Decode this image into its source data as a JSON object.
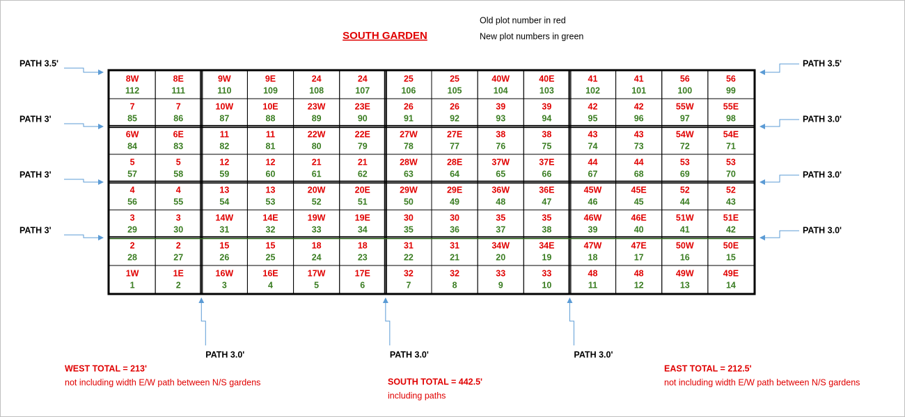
{
  "title": "SOUTH GARDEN",
  "legend": [
    "Old plot number in red",
    "New plot numbers in green"
  ],
  "paths": {
    "left": [
      "PATH 3.5'",
      "PATH 3'",
      "PATH 3'",
      "PATH 3'"
    ],
    "right": [
      "PATH 3.5'",
      "PATH 3.0'",
      "PATH 3.0'",
      "PATH 3.0'"
    ],
    "bottom": [
      "PATH 3.0'",
      "PATH 3.0'",
      "PATH 3.0'"
    ]
  },
  "grid": {
    "rows": [
      [
        {
          "old": "8W",
          "new": 112
        },
        {
          "old": "8E",
          "new": 111
        },
        {
          "old": "9W",
          "new": 110
        },
        {
          "old": "9E",
          "new": 109
        },
        {
          "old": "24",
          "new": 108
        },
        {
          "old": "24",
          "new": 107
        },
        {
          "old": "25",
          "new": 106
        },
        {
          "old": "25",
          "new": 105
        },
        {
          "old": "40W",
          "new": 104
        },
        {
          "old": "40E",
          "new": 103
        },
        {
          "old": "41",
          "new": 102
        },
        {
          "old": "41",
          "new": 101
        },
        {
          "old": "56",
          "new": 100
        },
        {
          "old": "56",
          "new": 99
        }
      ],
      [
        {
          "old": "7",
          "new": 85
        },
        {
          "old": "7",
          "new": 86
        },
        {
          "old": "10W",
          "new": 87
        },
        {
          "old": "10E",
          "new": 88
        },
        {
          "old": "23W",
          "new": 89
        },
        {
          "old": "23E",
          "new": 90
        },
        {
          "old": "26",
          "new": 91
        },
        {
          "old": "26",
          "new": 92
        },
        {
          "old": "39",
          "new": 93
        },
        {
          "old": "39",
          "new": 94
        },
        {
          "old": "42",
          "new": 95
        },
        {
          "old": "42",
          "new": 96
        },
        {
          "old": "55W",
          "new": 97
        },
        {
          "old": "55E",
          "new": 98
        }
      ],
      [
        {
          "old": "6W",
          "new": 84
        },
        {
          "old": "6E",
          "new": 83
        },
        {
          "old": "11",
          "new": 82
        },
        {
          "old": "11",
          "new": 81
        },
        {
          "old": "22W",
          "new": 80
        },
        {
          "old": "22E",
          "new": 79
        },
        {
          "old": "27W",
          "new": 78
        },
        {
          "old": "27E",
          "new": 77
        },
        {
          "old": "38",
          "new": 76
        },
        {
          "old": "38",
          "new": 75
        },
        {
          "old": "43",
          "new": 74
        },
        {
          "old": "43",
          "new": 73
        },
        {
          "old": "54W",
          "new": 72
        },
        {
          "old": "54E",
          "new": 71
        }
      ],
      [
        {
          "old": "5",
          "new": 57
        },
        {
          "old": "5",
          "new": 58
        },
        {
          "old": "12",
          "new": 59
        },
        {
          "old": "12",
          "new": 60
        },
        {
          "old": "21",
          "new": 61
        },
        {
          "old": "21",
          "new": 62
        },
        {
          "old": "28W",
          "new": 63
        },
        {
          "old": "28E",
          "new": 64
        },
        {
          "old": "37W",
          "new": 65
        },
        {
          "old": "37E",
          "new": 66
        },
        {
          "old": "44",
          "new": 67
        },
        {
          "old": "44",
          "new": 68
        },
        {
          "old": "53",
          "new": 69
        },
        {
          "old": "53",
          "new": 70
        }
      ],
      [
        {
          "old": "4",
          "new": 56
        },
        {
          "old": "4",
          "new": 55
        },
        {
          "old": "13",
          "new": 54
        },
        {
          "old": "13",
          "new": 53
        },
        {
          "old": "20W",
          "new": 52
        },
        {
          "old": "20E",
          "new": 51
        },
        {
          "old": "29W",
          "new": 50
        },
        {
          "old": "29E",
          "new": 49
        },
        {
          "old": "36W",
          "new": 48
        },
        {
          "old": "36E",
          "new": 47
        },
        {
          "old": "45W",
          "new": 46
        },
        {
          "old": "45E",
          "new": 45
        },
        {
          "old": "52",
          "new": 44
        },
        {
          "old": "52",
          "new": 43
        }
      ],
      [
        {
          "old": "3",
          "new": 29
        },
        {
          "old": "3",
          "new": 30
        },
        {
          "old": "14W",
          "new": 31
        },
        {
          "old": "14E",
          "new": 32
        },
        {
          "old": "19W",
          "new": 33
        },
        {
          "old": "19E",
          "new": 34
        },
        {
          "old": "30",
          "new": 35
        },
        {
          "old": "30",
          "new": 36
        },
        {
          "old": "35",
          "new": 37
        },
        {
          "old": "35",
          "new": 38
        },
        {
          "old": "46W",
          "new": 39
        },
        {
          "old": "46E",
          "new": 40
        },
        {
          "old": "51W",
          "new": 41
        },
        {
          "old": "51E",
          "new": 42
        }
      ],
      [
        {
          "old": "2",
          "new": 28
        },
        {
          "old": "2",
          "new": 27
        },
        {
          "old": "15",
          "new": 26
        },
        {
          "old": "15",
          "new": 25
        },
        {
          "old": "18",
          "new": 24
        },
        {
          "old": "18",
          "new": 23
        },
        {
          "old": "31",
          "new": 22
        },
        {
          "old": "31",
          "new": 21
        },
        {
          "old": "34W",
          "new": 20
        },
        {
          "old": "34E",
          "new": 19
        },
        {
          "old": "47W",
          "new": 18
        },
        {
          "old": "47E",
          "new": 17
        },
        {
          "old": "50W",
          "new": 16
        },
        {
          "old": "50E",
          "new": 15
        }
      ],
      [
        {
          "old": "1W",
          "new": 1
        },
        {
          "old": "1E",
          "new": 2
        },
        {
          "old": "16W",
          "new": 3
        },
        {
          "old": "16E",
          "new": 4
        },
        {
          "old": "17W",
          "new": 5
        },
        {
          "old": "17E",
          "new": 6
        },
        {
          "old": "32",
          "new": 7
        },
        {
          "old": "32",
          "new": 8
        },
        {
          "old": "33",
          "new": 9
        },
        {
          "old": "33",
          "new": 10
        },
        {
          "old": "48",
          "new": 11
        },
        {
          "old": "48",
          "new": 12
        },
        {
          "old": "49W",
          "new": 13
        },
        {
          "old": "49E",
          "new": 14
        }
      ]
    ]
  },
  "totals": [
    {
      "total": "WEST TOTAL = 213'",
      "note": "not including width E/W path between N/S gardens"
    },
    {
      "total": "SOUTH TOTAL = 442.5'",
      "note": "including paths"
    },
    {
      "total": "EAST TOTAL = 212.5'",
      "note": "not including width E/W path between N/S gardens"
    }
  ]
}
